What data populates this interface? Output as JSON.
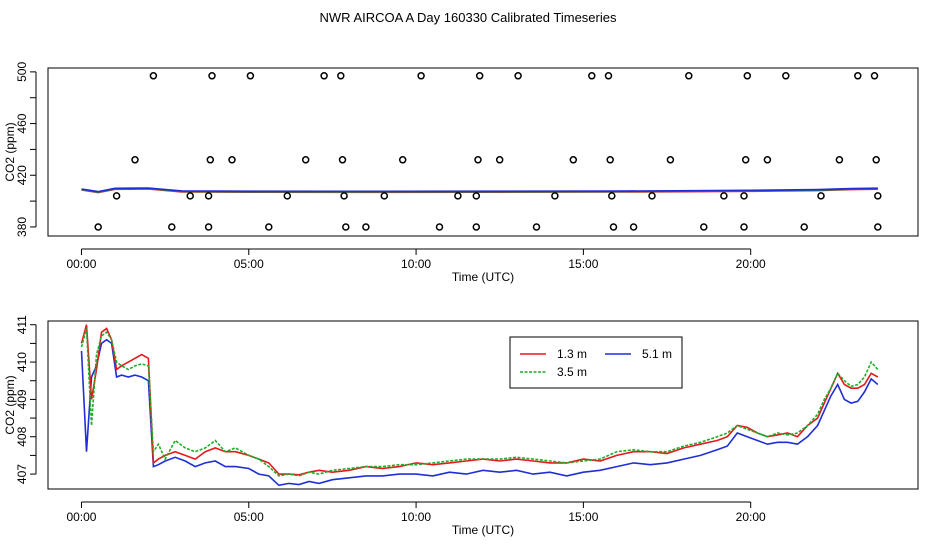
{
  "title": "NWR AIRCOA A  Day 160330  Calibrated Timeseries",
  "colors": {
    "red": "#e41a1c",
    "green": "#1fae2a",
    "blue": "#1f2fd6",
    "axis": "#000000"
  },
  "chart_data": [
    {
      "type": "scatter+line",
      "ylabel": "CO2 (ppm)",
      "xlabel": "Time (UTC)",
      "xlim": [
        -1,
        25
      ],
      "ylim": [
        373,
        503
      ],
      "xticks": [
        0,
        5,
        10,
        15,
        20
      ],
      "xtick_labels": [
        "00:00",
        "05:00",
        "10:00",
        "15:00",
        "20:00"
      ],
      "yticks": [
        380,
        420,
        460,
        500
      ],
      "ytick_labels": [
        "380",
        "420",
        "460",
        "500"
      ],
      "calibration_points": {
        "values": [
          380,
          404,
          432,
          497
        ],
        "x": [
          [
            0.5,
            2.7,
            3.8,
            5.6,
            7.9,
            8.5,
            10.7,
            11.8,
            13.6,
            15.9,
            16.5,
            18.6,
            19.8,
            21.6,
            23.8
          ],
          [
            1.05,
            3.25,
            3.8,
            6.15,
            7.85,
            9.05,
            11.25,
            11.8,
            14.15,
            15.85,
            17.05,
            19.2,
            19.8,
            22.1,
            23.8
          ],
          [
            1.6,
            3.85,
            4.5,
            6.7,
            7.8,
            9.6,
            11.85,
            12.5,
            14.7,
            15.8,
            17.6,
            19.85,
            20.5,
            22.65,
            23.75
          ],
          [
            2.15,
            3.9,
            5.05,
            7.25,
            7.75,
            10.15,
            11.9,
            13.05,
            15.25,
            15.75,
            18.15,
            19.9,
            21.05,
            23.2,
            23.7
          ]
        ]
      },
      "series": [
        {
          "name": "1.3 m",
          "color": "red"
        },
        {
          "name": "3.5 m",
          "color": "green"
        },
        {
          "name": "5.1 m",
          "color": "blue"
        }
      ]
    },
    {
      "type": "line",
      "ylabel": "CO2 (ppm)",
      "xlabel": "Time (UTC)",
      "xlim": [
        -1,
        25
      ],
      "ylim": [
        406.6,
        411.1
      ],
      "xticks": [
        0,
        5,
        10,
        15,
        20
      ],
      "xtick_labels": [
        "00:00",
        "05:00",
        "10:00",
        "15:00",
        "20:00"
      ],
      "yticks": [
        407,
        408,
        409,
        410,
        411
      ],
      "ytick_labels": [
        "407",
        "408",
        "409",
        "410",
        "411"
      ],
      "legend": {
        "position": "top-center",
        "ncol": 2,
        "order": [
          "1.3 m",
          "5.1 m",
          "3.5 m"
        ]
      },
      "x": [
        0,
        0.15,
        0.3,
        0.45,
        0.6,
        0.75,
        0.9,
        1.05,
        1.2,
        1.4,
        1.6,
        1.8,
        2.0,
        2.15,
        2.3,
        2.5,
        2.8,
        3.1,
        3.4,
        3.7,
        4.0,
        4.3,
        4.6,
        5.0,
        5.3,
        5.6,
        5.9,
        6.2,
        6.5,
        6.8,
        7.1,
        7.5,
        8.0,
        8.5,
        9.0,
        9.5,
        10.0,
        10.5,
        11.0,
        11.5,
        12.0,
        12.5,
        13.0,
        13.5,
        14.0,
        14.5,
        15.0,
        15.5,
        16.0,
        16.5,
        17.0,
        17.5,
        18.0,
        18.5,
        19.0,
        19.3,
        19.6,
        19.9,
        20.2,
        20.5,
        20.8,
        21.1,
        21.4,
        21.7,
        22.0,
        22.2,
        22.4,
        22.6,
        22.8,
        23.0,
        23.2,
        23.4,
        23.6,
        23.8
      ],
      "series": [
        {
          "name": "1.3 m",
          "color": "red",
          "values": [
            410.5,
            411.0,
            409.0,
            409.8,
            410.8,
            410.9,
            410.6,
            409.8,
            409.9,
            410.0,
            410.1,
            410.2,
            410.1,
            407.3,
            407.4,
            407.5,
            407.6,
            407.5,
            407.4,
            407.6,
            407.7,
            407.6,
            407.6,
            407.5,
            407.4,
            407.3,
            407.0,
            407.0,
            406.98,
            407.05,
            407.1,
            407.05,
            407.1,
            407.2,
            407.15,
            407.2,
            407.3,
            407.25,
            407.3,
            407.35,
            407.4,
            407.35,
            407.4,
            407.35,
            407.3,
            407.3,
            407.4,
            407.35,
            407.5,
            407.6,
            407.6,
            407.55,
            407.7,
            407.8,
            407.9,
            408.0,
            408.3,
            408.25,
            408.1,
            408.0,
            408.05,
            408.1,
            408.0,
            408.3,
            408.5,
            408.9,
            409.3,
            409.7,
            409.4,
            409.3,
            409.3,
            409.4,
            409.7,
            409.6
          ]
        },
        {
          "name": "3.5 m",
          "color": "green",
          "values": [
            410.4,
            410.9,
            408.3,
            410.2,
            410.7,
            410.8,
            410.6,
            410.0,
            409.9,
            409.8,
            409.9,
            409.95,
            409.9,
            407.6,
            407.8,
            407.4,
            407.9,
            407.7,
            407.6,
            407.7,
            407.9,
            407.6,
            407.7,
            407.5,
            407.4,
            407.2,
            406.95,
            407.0,
            406.95,
            407.05,
            407.0,
            407.1,
            407.15,
            407.2,
            407.2,
            407.25,
            407.25,
            407.3,
            407.35,
            407.4,
            407.4,
            407.4,
            407.45,
            407.4,
            407.35,
            407.3,
            407.35,
            407.4,
            407.6,
            407.65,
            407.6,
            407.6,
            407.75,
            407.85,
            408.0,
            408.1,
            408.3,
            408.2,
            408.1,
            408.0,
            408.1,
            408.05,
            408.1,
            408.3,
            408.6,
            409.0,
            409.3,
            409.7,
            409.5,
            409.35,
            409.4,
            409.6,
            410.0,
            409.8
          ]
        },
        {
          "name": "5.1 m",
          "color": "blue",
          "values": [
            410.3,
            407.6,
            409.6,
            409.9,
            410.5,
            410.6,
            410.5,
            409.6,
            409.65,
            409.6,
            409.65,
            409.6,
            409.5,
            407.2,
            407.25,
            407.35,
            407.45,
            407.35,
            407.2,
            407.3,
            407.35,
            407.2,
            407.2,
            407.15,
            407.0,
            406.95,
            406.7,
            406.75,
            406.72,
            406.8,
            406.75,
            406.85,
            406.9,
            406.95,
            406.95,
            407.0,
            407.0,
            406.95,
            407.05,
            407.0,
            407.1,
            407.05,
            407.1,
            407.0,
            407.05,
            406.95,
            407.05,
            407.1,
            407.2,
            407.3,
            407.25,
            407.3,
            407.4,
            407.5,
            407.65,
            407.75,
            408.1,
            408.0,
            407.9,
            407.8,
            407.85,
            407.85,
            407.8,
            408.0,
            408.3,
            408.7,
            409.1,
            409.4,
            409.0,
            408.9,
            408.95,
            409.2,
            409.55,
            409.4
          ]
        }
      ],
      "flat_curve_panel1": {
        "x": [
          0,
          0.5,
          1.0,
          2.0,
          3.0,
          5.0,
          8.0,
          12.0,
          16.0,
          20.0,
          22.0,
          23.0,
          23.8
        ],
        "values": [
          409,
          407,
          409.5,
          409.8,
          407.5,
          407.3,
          407.2,
          407.3,
          407.4,
          408.0,
          408.5,
          409.3,
          409.6
        ]
      }
    }
  ]
}
